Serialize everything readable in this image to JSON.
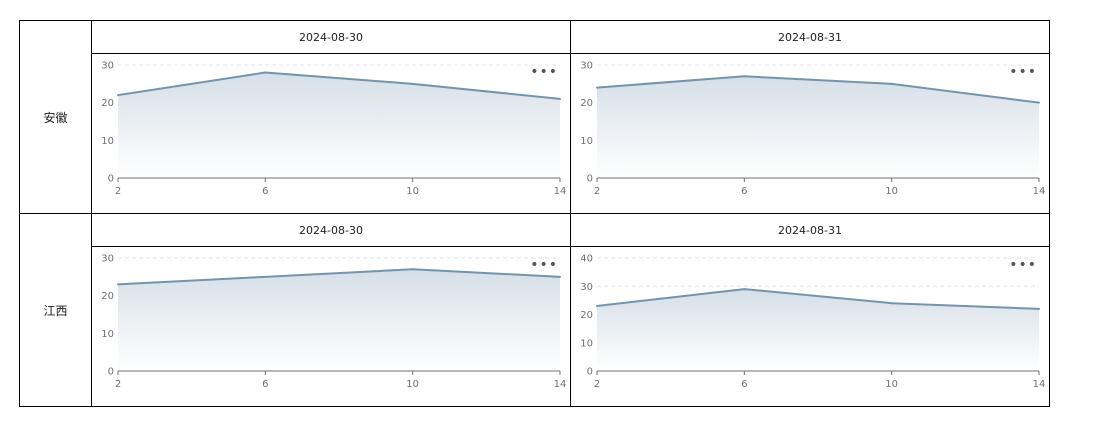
{
  "rows": [
    {
      "label": "安徽",
      "cells": [
        {
          "date": "2024-08-30",
          "chart_data": {
            "type": "area",
            "x": [
              2,
              6,
              10,
              14
            ],
            "values": [
              22,
              28,
              25,
              21
            ],
            "ylim": [
              0,
              30
            ],
            "yticks": [
              0,
              10,
              20,
              30
            ],
            "grid": true
          }
        },
        {
          "date": "2024-08-31",
          "chart_data": {
            "type": "area",
            "x": [
              2,
              6,
              10,
              14
            ],
            "values": [
              24,
              27,
              25,
              20
            ],
            "ylim": [
              0,
              30
            ],
            "yticks": [
              0,
              10,
              20,
              30
            ],
            "grid": true
          }
        }
      ]
    },
    {
      "label": "江西",
      "cells": [
        {
          "date": "2024-08-30",
          "chart_data": {
            "type": "area",
            "x": [
              2,
              6,
              10,
              14
            ],
            "values": [
              23,
              25,
              27,
              25
            ],
            "ylim": [
              0,
              30
            ],
            "yticks": [
              0,
              10,
              20,
              30
            ],
            "grid": true
          }
        },
        {
          "date": "2024-08-31",
          "chart_data": {
            "type": "area",
            "x": [
              2,
              6,
              10,
              14
            ],
            "values": [
              23,
              29,
              24,
              22
            ],
            "ylim": [
              0,
              40
            ],
            "yticks": [
              0,
              10,
              20,
              30,
              40
            ],
            "grid": true
          }
        }
      ]
    }
  ],
  "more_icon": "more-horizontal-icon",
  "colors": {
    "line": "#7494ab",
    "area_top": "#d3dde6",
    "area_bottom": "#ffffff",
    "grid": "#e0e6f1",
    "axis": "#6e7079"
  }
}
